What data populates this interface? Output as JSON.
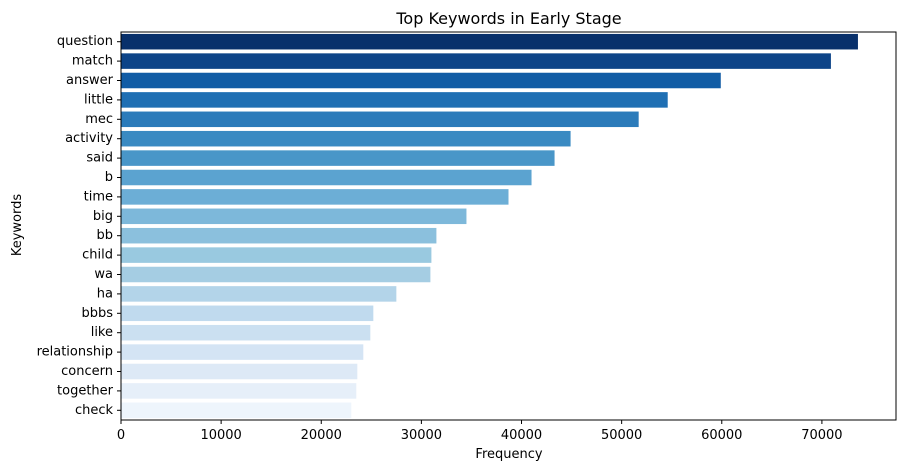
{
  "chart_data": {
    "type": "bar",
    "orientation": "horizontal",
    "title": "Top Keywords in Early Stage",
    "xlabel": "Frequency",
    "ylabel": "Keywords",
    "xlim": [
      0,
      77400
    ],
    "xticks": [
      0,
      10000,
      20000,
      30000,
      40000,
      50000,
      60000,
      70000
    ],
    "grid": false,
    "legend": "none",
    "palette": "Blues (dark to light)",
    "categories": [
      "question",
      "match",
      "answer",
      "little",
      "mec",
      "activity",
      "said",
      "b",
      "time",
      "big",
      "bb",
      "child",
      "wa",
      "ha",
      "bbbs",
      "like",
      "relationship",
      "concern",
      "together",
      "check"
    ],
    "values": [
      73600,
      70900,
      59900,
      54600,
      51700,
      44900,
      43300,
      41000,
      38700,
      34500,
      31500,
      31000,
      30900,
      27500,
      25200,
      24900,
      24200,
      23600,
      23500,
      23000
    ],
    "colors": [
      "#08306b",
      "#0d4488",
      "#115ca5",
      "#1f6fb3",
      "#2b7bba",
      "#3a8ac2",
      "#4996c8",
      "#5ba3d0",
      "#6caed6",
      "#7db8da",
      "#8bc0dd",
      "#99c9e0",
      "#a5cde3",
      "#b3d4e9",
      "#c0daee",
      "#cbe0f1",
      "#d4e4f4",
      "#dde9f6",
      "#e6eff9",
      "#eef5fc"
    ]
  }
}
